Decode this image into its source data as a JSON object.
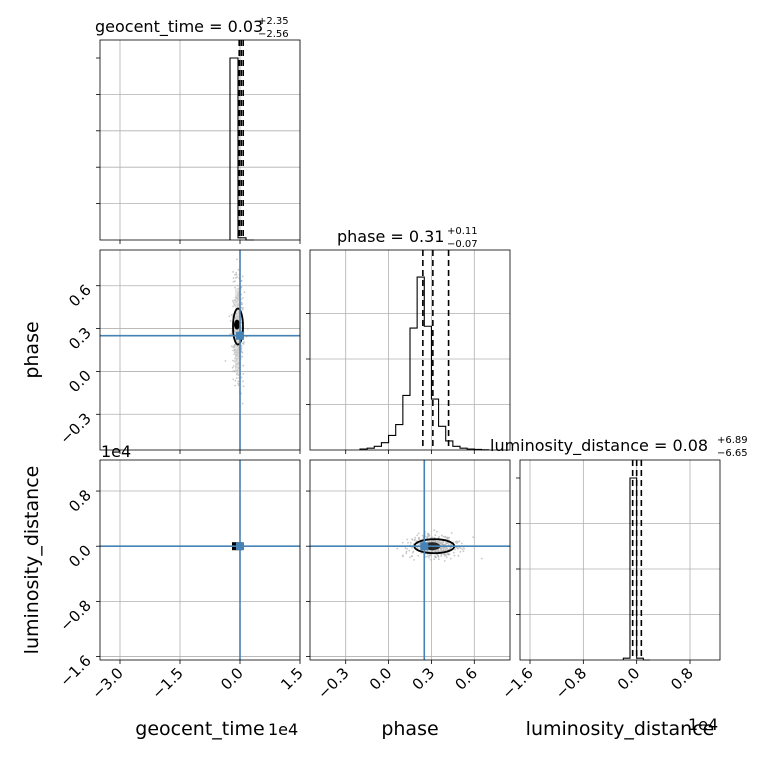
{
  "chart_data": {
    "type": "corner",
    "parameters": [
      "geocent_time",
      "phase",
      "luminosity_distance"
    ],
    "colors": {
      "truth": "#4682b4",
      "hist": "#000000",
      "grid": "#b0b0b0",
      "samples": "#b0b0b0"
    },
    "grid": true,
    "panels": {
      "geocent_time_hist": {
        "title_name": "geocent_time",
        "title_value": "0.03",
        "title_plus": "+2.35",
        "title_minus": "−2.56",
        "xlim": [
          -3.5,
          1.5
        ],
        "xticks": [
          -3.0,
          -1.5,
          0.0,
          1.5
        ],
        "bins_x": [
          -0.25,
          -0.05,
          0.15,
          0.35
        ],
        "bins_counts": [
          1.0,
          0.012,
          0.0
        ],
        "quantiles": [
          -0.02,
          0.03,
          0.08
        ]
      },
      "phase_hist": {
        "title_name": "phase",
        "title_value": "0.31",
        "title_plus": "+0.11",
        "title_minus": "−0.07",
        "xlim": [
          -0.55,
          0.85
        ],
        "xticks": [
          -0.3,
          0.0,
          0.3,
          0.6
        ],
        "bins_x": [
          -0.2,
          -0.15,
          -0.1,
          -0.05,
          0.0,
          0.05,
          0.1,
          0.15,
          0.2,
          0.25,
          0.3,
          0.35,
          0.4,
          0.45,
          0.5,
          0.55,
          0.6,
          0.65,
          0.7
        ],
        "bins_counts": [
          0.005,
          0.01,
          0.02,
          0.04,
          0.08,
          0.14,
          0.3,
          0.67,
          0.95,
          0.68,
          0.28,
          0.13,
          0.05,
          0.02,
          0.01,
          0.005,
          0.003,
          0.001
        ],
        "quantiles": [
          0.24,
          0.31,
          0.42
        ]
      },
      "luminosity_distance_hist": {
        "title_name": "luminosity_distance",
        "title_value": "0.08",
        "title_plus": "+6.89",
        "title_minus": "−6.65",
        "xlim": [
          -1.75,
          1.25
        ],
        "xticks": [
          -1.6,
          -0.8,
          0.0,
          0.8
        ],
        "bins_x": [
          -0.2,
          -0.1,
          0.0,
          0.1,
          0.2
        ],
        "bins_counts": [
          0.01,
          1.0,
          0.01,
          0.0
        ],
        "quantiles": [
          -0.06,
          0.0,
          0.07
        ]
      },
      "phase_vs_geocent_time": {
        "xlim": [
          -3.5,
          1.5
        ],
        "ylim": [
          -0.55,
          0.85
        ],
        "yticks": [
          -0.3,
          0.0,
          0.3,
          0.6
        ],
        "truth": {
          "x": 0.0,
          "y": 0.25
        },
        "contour_center": {
          "x": -0.05,
          "y": 0.3
        }
      },
      "luminosity_distance_vs_geocent_time": {
        "xlim": [
          -3.5,
          1.5
        ],
        "ylim": [
          -1.65,
          1.25
        ],
        "yticks": [
          -1.6,
          -0.8,
          0.0,
          0.8
        ],
        "truth": {
          "x": 0.0,
          "y": 0.0
        }
      },
      "luminosity_distance_vs_phase": {
        "xlim": [
          -0.55,
          0.85
        ],
        "ylim": [
          -1.65,
          1.25
        ],
        "truth": {
          "x": 0.25,
          "y": 0.0
        },
        "contour_center": {
          "x": 0.32,
          "y": 0.0
        }
      }
    },
    "xlabels": [
      "geocent_time",
      "phase",
      "luminosity_distance"
    ],
    "ylabels": [
      "phase",
      "luminosity_distance"
    ],
    "offset_labels": [
      "1e4",
      "1e4",
      "1e4"
    ]
  }
}
